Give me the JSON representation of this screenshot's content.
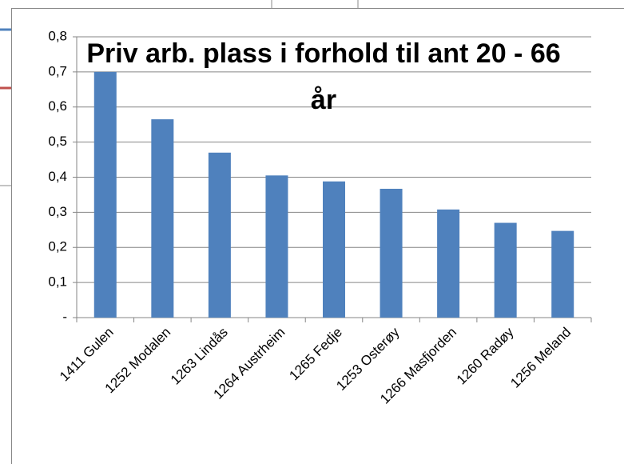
{
  "chart_data": {
    "type": "bar",
    "title": "Priv arb. plass i forhold til ant 20 - 66 år",
    "categories": [
      "1411 Gulen",
      "1252 Modalen",
      "1263 Lindås",
      "1264 Austrheim",
      "1265 Fedje",
      "1253 Osterøy",
      "1266 Masfjorden",
      "1260 Radøy",
      "1256 Meland"
    ],
    "values": [
      0.7,
      0.565,
      0.47,
      0.405,
      0.388,
      0.367,
      0.308,
      0.27,
      0.247
    ],
    "color": "#4f81bd",
    "ylim": [
      0,
      0.8
    ],
    "yticks": [
      {
        "value": 0,
        "label": "-"
      },
      {
        "value": 0.1,
        "label": "0,1"
      },
      {
        "value": 0.2,
        "label": "0,2"
      },
      {
        "value": 0.3,
        "label": "0,3"
      },
      {
        "value": 0.4,
        "label": "0,4"
      },
      {
        "value": 0.5,
        "label": "0,5"
      },
      {
        "value": 0.6,
        "label": "0,6"
      },
      {
        "value": 0.7,
        "label": "0,7"
      },
      {
        "value": 0.8,
        "label": "0,8"
      }
    ],
    "grid": true
  }
}
